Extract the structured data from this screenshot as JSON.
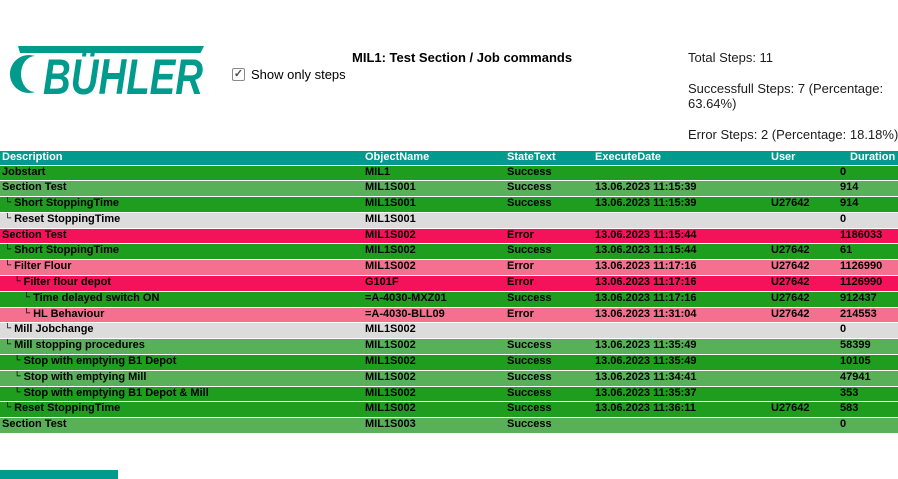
{
  "logo": {
    "brand": "BÜHLER",
    "color": "#009b8c"
  },
  "controls": {
    "show_only_steps_label": "Show only steps",
    "checked": true,
    "check_glyph": "✓"
  },
  "header": {
    "title": "MIL1: Test Section / Job commands"
  },
  "summary": {
    "total": "Total Steps: 11",
    "success": "Successfull Steps: 7 (Percentage: 63.64%)",
    "error": "Error Steps: 2 (Percentage: 18.18%)"
  },
  "colors": {
    "teal": "#009b8c",
    "row_success_dark": "#1f9d1f",
    "row_success_mid": "#58b158",
    "row_neutral_gray": "#dcdcdc",
    "row_error_crimson": "#f4135a",
    "row_error_pink": "#f4708e"
  },
  "table": {
    "columns": [
      {
        "key": "description",
        "label": "Description"
      },
      {
        "key": "objectName",
        "label": "ObjectName"
      },
      {
        "key": "stateText",
        "label": "StateText"
      },
      {
        "key": "executeDate",
        "label": "ExecuteDate"
      },
      {
        "key": "user",
        "label": "User"
      },
      {
        "key": "duration",
        "label": "Duration"
      }
    ],
    "tree_glyph": "└",
    "rows": [
      {
        "description": "Jobstart",
        "indent": 0,
        "objectName": "MIL1",
        "stateText": "Success",
        "executeDate": "",
        "user": "",
        "duration": "0",
        "variant": "greendark"
      },
      {
        "description": "Section Test",
        "indent": 0,
        "objectName": "MIL1S001",
        "stateText": "Success",
        "executeDate": "13.06.2023 11:15:39",
        "user": "",
        "duration": "914",
        "variant": "greenmid"
      },
      {
        "description": "Short StoppingTime",
        "indent": 1,
        "objectName": "MIL1S001",
        "stateText": "Success",
        "executeDate": "13.06.2023 11:15:39",
        "user": "U27642",
        "duration": "914",
        "variant": "greendark"
      },
      {
        "description": "Reset StoppingTime",
        "indent": 1,
        "objectName": "MIL1S001",
        "stateText": "",
        "executeDate": "",
        "user": "",
        "duration": "0",
        "variant": "gray"
      },
      {
        "description": "Section Test",
        "indent": 0,
        "objectName": "MIL1S002",
        "stateText": "Error",
        "executeDate": "13.06.2023 11:15:44",
        "user": "",
        "duration": "1186033",
        "variant": "crimson"
      },
      {
        "description": "Short StoppingTime",
        "indent": 1,
        "objectName": "MIL1S002",
        "stateText": "Success",
        "executeDate": "13.06.2023 11:15:44",
        "user": "U27642",
        "duration": "61",
        "variant": "greendark"
      },
      {
        "description": "Filter Flour",
        "indent": 1,
        "objectName": "MIL1S002",
        "stateText": "Error",
        "executeDate": "13.06.2023 11:17:16",
        "user": "U27642",
        "duration": "1126990",
        "variant": "pink"
      },
      {
        "description": "Filter flour depot",
        "indent": 2,
        "objectName": "G101F",
        "stateText": "Error",
        "executeDate": "13.06.2023 11:17:16",
        "user": "U27642",
        "duration": "1126990",
        "variant": "crimson"
      },
      {
        "description": "Time delayed switch ON",
        "indent": 3,
        "objectName": "=A-4030-MXZ01",
        "stateText": "Success",
        "executeDate": "13.06.2023 11:17:16",
        "user": "U27642",
        "duration": "912437",
        "variant": "greendark"
      },
      {
        "description": "HL Behaviour",
        "indent": 3,
        "objectName": "=A-4030-BLL09",
        "stateText": "Error",
        "executeDate": "13.06.2023 11:31:04",
        "user": "U27642",
        "duration": "214553",
        "variant": "pink"
      },
      {
        "description": "Mill Jobchange",
        "indent": 1,
        "objectName": "MIL1S002",
        "stateText": "",
        "executeDate": "",
        "user": "",
        "duration": "0",
        "variant": "gray"
      },
      {
        "description": "Mill stopping procedures",
        "indent": 1,
        "objectName": "MIL1S002",
        "stateText": "Success",
        "executeDate": "13.06.2023 11:35:49",
        "user": "",
        "duration": "58399",
        "variant": "greenmid"
      },
      {
        "description": "Stop with emptying B1 Depot",
        "indent": 2,
        "objectName": "MIL1S002",
        "stateText": "Success",
        "executeDate": "13.06.2023 11:35:49",
        "user": "",
        "duration": "10105",
        "variant": "greendark"
      },
      {
        "description": "Stop with emptying Mill",
        "indent": 2,
        "objectName": "MIL1S002",
        "stateText": "Success",
        "executeDate": "13.06.2023 11:34:41",
        "user": "",
        "duration": "47941",
        "variant": "greenmid"
      },
      {
        "description": "Stop with emptying B1 Depot & Mill",
        "indent": 2,
        "objectName": "MIL1S002",
        "stateText": "Success",
        "executeDate": "13.06.2023 11:35:37",
        "user": "",
        "duration": "353",
        "variant": "greendark"
      },
      {
        "description": "Reset StoppingTime",
        "indent": 1,
        "objectName": "MIL1S002",
        "stateText": "Success",
        "executeDate": "13.06.2023 11:36:11",
        "user": "U27642",
        "duration": "583",
        "variant": "greendark"
      },
      {
        "description": "Section Test",
        "indent": 0,
        "objectName": "MIL1S003",
        "stateText": "Success",
        "executeDate": "",
        "user": "",
        "duration": "0",
        "variant": "greenmid"
      }
    ]
  }
}
